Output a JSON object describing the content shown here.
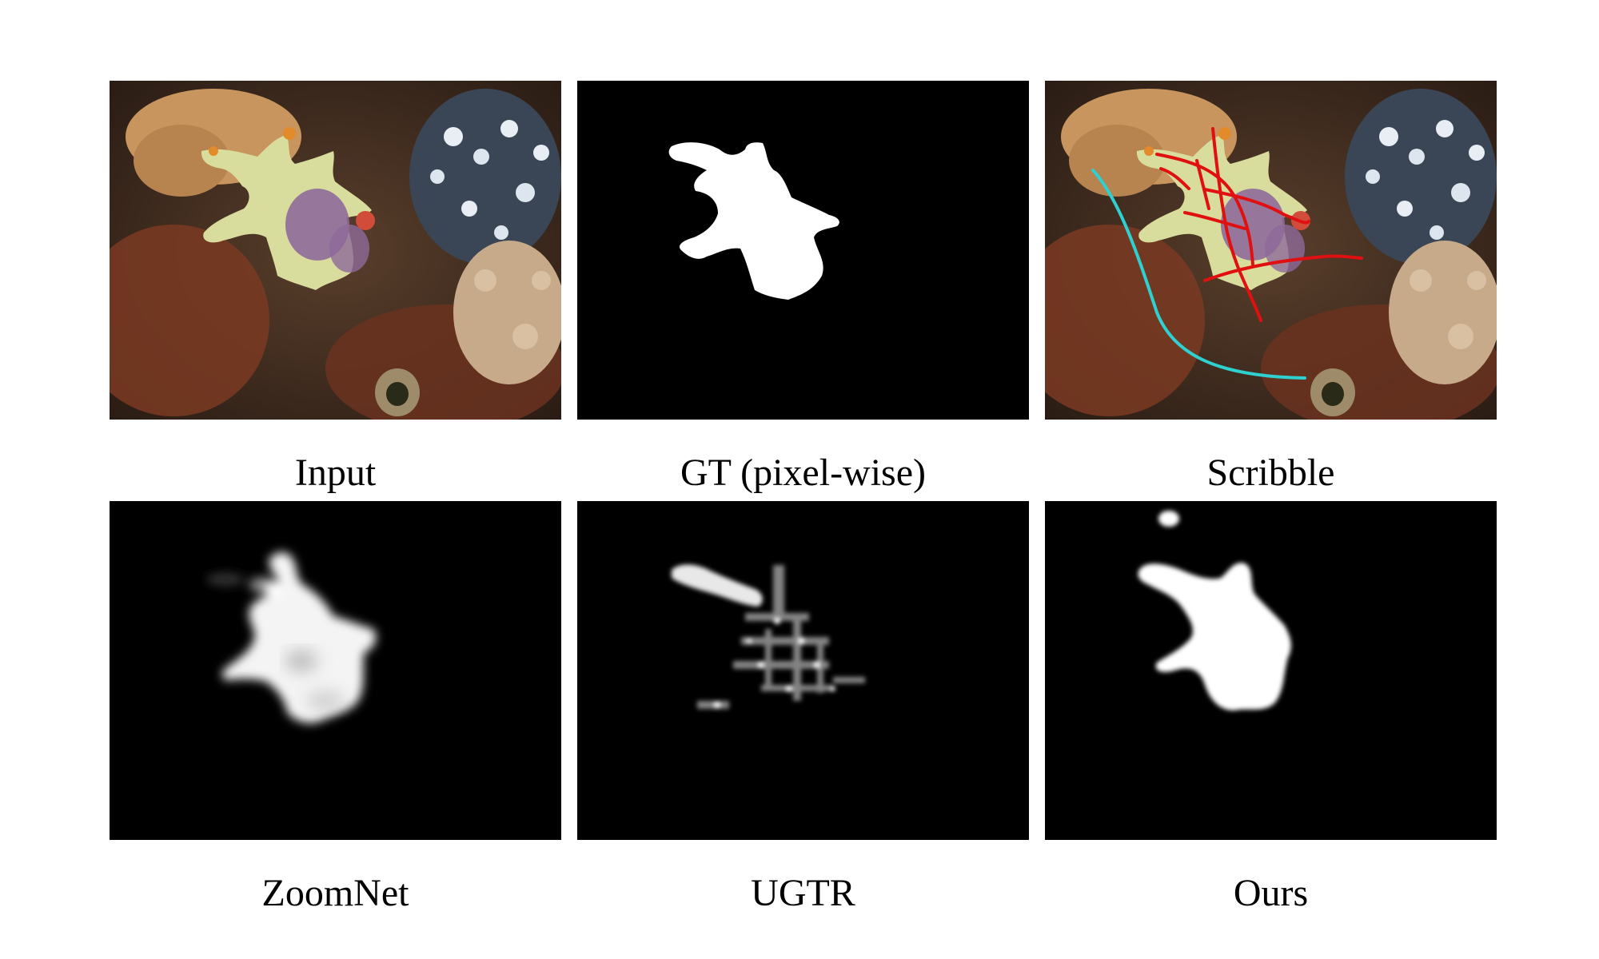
{
  "figure": {
    "panels": [
      {
        "id": "input",
        "caption": "Input"
      },
      {
        "id": "gt",
        "caption": "GT (pixel-wise)"
      },
      {
        "id": "scribble",
        "caption": "Scribble"
      },
      {
        "id": "zoomnet",
        "caption": "ZoomNet"
      },
      {
        "id": "ugtr",
        "caption": "UGTR"
      },
      {
        "id": "ours",
        "caption": "Ours"
      }
    ],
    "colors": {
      "mask_fg": "#ffffff",
      "mask_bg": "#000000",
      "scribble_fg": "#e01010",
      "scribble_bg": "#2fd0d0"
    }
  }
}
